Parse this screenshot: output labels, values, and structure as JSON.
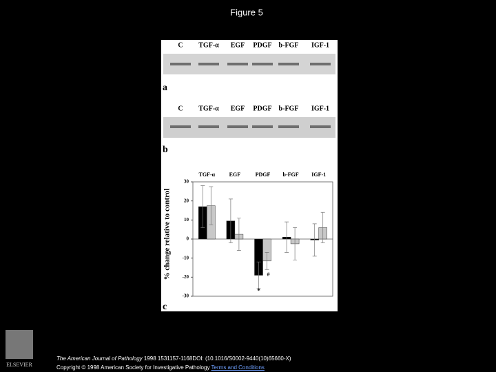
{
  "title": "Figure 5",
  "panels": [
    {
      "label": "a",
      "lanes": [
        "C",
        "TGF-α",
        "EGF",
        "PDGF",
        "b-FGF",
        "IGF-1"
      ]
    },
    {
      "label": "b",
      "lanes": [
        "C",
        "TGF-α",
        "EGF",
        "PDGF",
        "b-FGF",
        "IGF-1"
      ]
    }
  ],
  "chart_data": {
    "type": "bar",
    "label": "c",
    "ylabel": "% change relative to control",
    "categories": [
      "TGF-α",
      "EGF",
      "PDGF",
      "b-FGF",
      "IGF-1"
    ],
    "series": [
      {
        "color": "#000000",
        "values": [
          17,
          9.5,
          -19,
          1,
          -0.5
        ],
        "errors": [
          11,
          11.5,
          7,
          8,
          8.5
        ]
      },
      {
        "color": "#c8c8c8",
        "values": [
          17.5,
          2.5,
          -11.5,
          -2.5,
          6
        ],
        "errors": [
          10,
          8.5,
          4.5,
          8.5,
          8
        ]
      }
    ],
    "annotations": [
      "*",
      "#"
    ],
    "ylim": [
      -30,
      30
    ],
    "yticks": [
      -30,
      -20,
      -10,
      0,
      10,
      20,
      30
    ]
  },
  "footer": {
    "journal": "The American Journal of Pathology",
    "citation": " 1998 1531157-1168DOI: (10.1016/S0002-9440(10)65660-X)",
    "copyright": "Copyright © 1998 American Society for Investigative Pathology",
    "link": "Terms and Conditions",
    "publisher": "ELSEVIER"
  }
}
